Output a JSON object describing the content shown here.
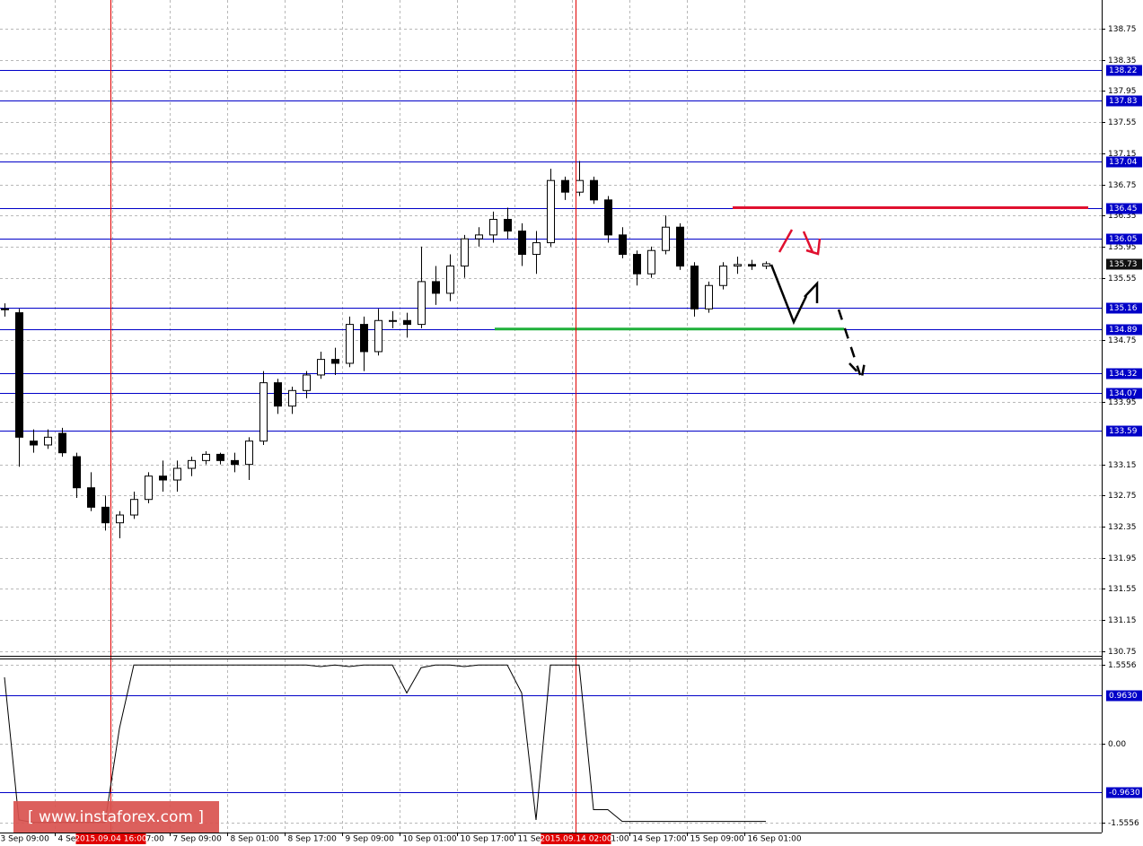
{
  "chart_data": [
    {
      "type": "candlestick",
      "x": [
        1,
        5,
        9,
        13,
        17,
        21,
        25,
        29,
        33,
        37,
        41,
        45,
        49,
        53,
        57,
        61,
        65,
        69,
        73,
        77,
        81,
        85,
        89,
        93,
        97,
        101,
        105,
        109,
        113,
        117,
        121,
        125,
        129,
        133,
        137,
        141,
        145,
        149,
        153,
        157,
        161,
        165,
        169,
        173,
        177,
        181,
        185,
        189,
        193,
        197,
        201,
        205,
        209,
        213
      ],
      "open": [
        135.15,
        135.1,
        133.45,
        133.4,
        133.55,
        133.25,
        132.85,
        132.6,
        132.4,
        132.5,
        132.7,
        133.0,
        132.95,
        133.1,
        133.2,
        133.28,
        133.2,
        133.15,
        133.45,
        134.2,
        133.9,
        134.1,
        134.3,
        134.5,
        134.45,
        134.95,
        134.6,
        135.0,
        135.0,
        134.95,
        135.5,
        135.35,
        135.7,
        136.05,
        136.1,
        136.3,
        136.15,
        135.85,
        136.0,
        136.8,
        136.65,
        136.8,
        136.55,
        136.1,
        135.85,
        135.6,
        135.9,
        136.2,
        135.7,
        135.15,
        135.45,
        135.7,
        135.72,
        135.7
      ],
      "high": [
        135.22,
        135.15,
        133.6,
        133.6,
        133.62,
        133.3,
        133.05,
        132.75,
        132.55,
        132.8,
        133.05,
        133.2,
        133.2,
        133.25,
        133.32,
        133.3,
        133.3,
        133.5,
        134.35,
        134.25,
        134.15,
        134.35,
        134.6,
        134.65,
        135.05,
        135.05,
        135.15,
        135.12,
        135.1,
        135.95,
        135.7,
        135.85,
        136.1,
        136.2,
        136.4,
        136.45,
        136.25,
        136.15,
        136.95,
        136.85,
        137.05,
        136.85,
        136.6,
        136.2,
        135.9,
        135.95,
        136.35,
        136.25,
        135.75,
        135.5,
        135.75,
        135.82,
        135.78,
        135.76
      ],
      "low": [
        135.05,
        133.12,
        133.3,
        133.35,
        133.25,
        132.72,
        132.55,
        132.3,
        132.2,
        132.45,
        132.65,
        132.8,
        132.8,
        133.0,
        133.15,
        133.15,
        133.05,
        132.95,
        133.4,
        133.8,
        133.8,
        134.0,
        134.25,
        134.3,
        134.4,
        134.35,
        134.55,
        134.9,
        134.78,
        134.9,
        135.2,
        135.25,
        135.55,
        135.95,
        136.0,
        136.05,
        135.7,
        135.6,
        135.95,
        136.55,
        136.6,
        136.5,
        136.0,
        135.8,
        135.45,
        135.55,
        135.85,
        135.65,
        135.05,
        135.1,
        135.4,
        135.6,
        135.65,
        135.66
      ],
      "close": [
        135.15,
        133.5,
        133.4,
        133.5,
        133.3,
        132.85,
        132.6,
        132.4,
        132.5,
        132.7,
        133.0,
        132.95,
        133.1,
        133.2,
        133.28,
        133.2,
        133.15,
        133.45,
        134.2,
        133.9,
        134.1,
        134.3,
        134.5,
        134.45,
        134.95,
        134.6,
        135.0,
        135.0,
        134.95,
        135.5,
        135.35,
        135.7,
        136.05,
        136.1,
        136.3,
        136.15,
        135.85,
        136.0,
        136.8,
        136.65,
        136.8,
        136.55,
        136.1,
        135.85,
        135.6,
        135.9,
        136.2,
        135.7,
        135.15,
        135.45,
        135.7,
        135.72,
        135.7,
        135.73
      ],
      "xlim": [
        -0.25,
        306.5
      ],
      "xticks": [
        {
          "value": -1,
          "label": "3 Sep 09:00"
        },
        {
          "value": 15,
          "label": "4 Sep 01:00"
        },
        {
          "value": 31,
          "label": "4 Sep 17:00"
        },
        {
          "value": 47,
          "label": "7 Sep 09:00"
        },
        {
          "value": 63,
          "label": "8 Sep 01:00"
        },
        {
          "value": 79,
          "label": "8 Sep 17:00"
        },
        {
          "value": 95,
          "label": "9 Sep 09:00"
        },
        {
          "value": 111,
          "label": "10 Sep 01:00"
        },
        {
          "value": 127,
          "label": "10 Sep 17:00"
        },
        {
          "value": 143,
          "label": "11 Sep 09:00"
        },
        {
          "value": 159,
          "label": "14 Sep 01:00"
        },
        {
          "value": 175,
          "label": "14 Sep 17:00"
        },
        {
          "value": 191,
          "label": "15 Sep 09:00"
        },
        {
          "value": 207,
          "label": "16 Sep 01:00"
        }
      ],
      "ylim": [
        130.69,
        139.12
      ],
      "yticks": [
        138.75,
        138.35,
        137.95,
        137.55,
        137.15,
        136.75,
        136.35,
        135.95,
        135.55,
        134.75,
        133.95,
        133.15,
        132.75,
        132.35,
        131.95,
        131.55,
        131.15,
        130.75
      ],
      "grid": true,
      "levels": [
        138.22,
        137.83,
        137.04,
        136.45,
        136.05,
        135.16,
        134.89,
        134.32,
        134.07,
        133.59
      ],
      "level_color": "#0000c8",
      "last_price": 135.73,
      "segments": [
        {
          "value": 136.45,
          "x": [
            203.75,
            302.75
          ],
          "color": "#e0102f"
        },
        {
          "value": 134.89,
          "x": [
            137.5,
            234.75
          ],
          "color": "#1fb03a"
        }
      ],
      "markers": [
        {
          "x": 30.5,
          "label": "2015.09.04 16:00"
        },
        {
          "x": 160,
          "label": "2015.09.14 02:00"
        }
      ],
      "marker_color": "#e00000"
    },
    {
      "type": "line",
      "x": [
        1,
        5,
        9,
        13,
        17,
        21,
        25,
        29,
        33,
        37,
        41,
        45,
        49,
        53,
        57,
        61,
        65,
        69,
        73,
        77,
        81,
        85,
        89,
        93,
        97,
        101,
        105,
        109,
        113,
        117,
        121,
        125,
        129,
        133,
        137,
        141,
        145,
        149,
        153,
        157,
        161,
        165,
        169,
        173,
        177,
        181,
        185,
        189,
        193,
        197,
        201,
        205,
        209,
        213
      ],
      "values": [
        1.31,
        -1.5,
        -1.55,
        -1.55,
        -1.55,
        -1.55,
        -1.55,
        -1.55,
        0.3,
        1.55,
        1.55,
        1.55,
        1.55,
        1.55,
        1.55,
        1.55,
        1.55,
        1.55,
        1.55,
        1.55,
        1.55,
        1.55,
        1.52,
        1.55,
        1.52,
        1.55,
        1.55,
        1.55,
        1.0,
        1.5,
        1.55,
        1.55,
        1.52,
        1.55,
        1.55,
        1.55,
        1.0,
        -1.5,
        1.55,
        1.55,
        1.55,
        -1.3,
        -1.3,
        -1.53,
        -1.53,
        -1.53,
        -1.53,
        -1.53,
        -1.53,
        -1.53,
        -1.53,
        -1.53,
        -1.53,
        -1.53
      ],
      "color": "#000000",
      "xlim": [
        -0.25,
        306.5
      ],
      "ylim": [
        -1.75,
        1.662
      ],
      "yticks": [
        1.5556,
        {
          "value": 0,
          "label": "0.00"
        },
        -1.5556
      ],
      "levels": [
        {
          "value": 0.963,
          "label": "0.9630"
        },
        {
          "value": -0.963,
          "label": "-0.9630"
        }
      ]
    }
  ],
  "watermark": "[ www.instaforex.com ]"
}
